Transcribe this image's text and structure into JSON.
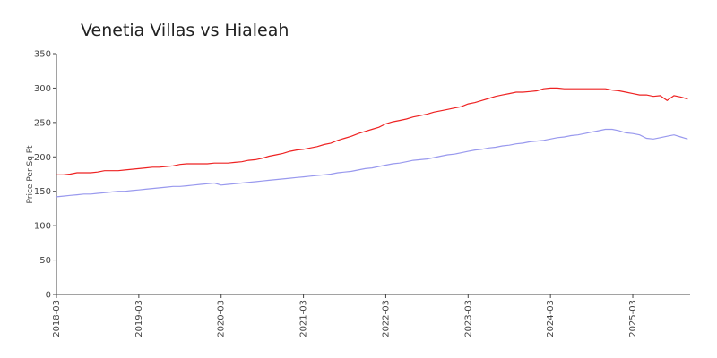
{
  "chart_data": {
    "type": "line",
    "title": "Venetia Villas vs Hialeah",
    "y_label": "Price Per Sq Ft",
    "x": [
      "2018-03",
      "2018-04",
      "2018-05",
      "2018-06",
      "2018-07",
      "2018-08",
      "2018-09",
      "2018-10",
      "2018-11",
      "2018-12",
      "2019-01",
      "2019-02",
      "2019-03",
      "2019-04",
      "2019-05",
      "2019-06",
      "2019-07",
      "2019-08",
      "2019-09",
      "2019-10",
      "2019-11",
      "2019-12",
      "2020-01",
      "2020-02",
      "2020-03",
      "2020-04",
      "2020-05",
      "2020-06",
      "2020-07",
      "2020-08",
      "2020-09",
      "2020-10",
      "2020-11",
      "2020-12",
      "2021-01",
      "2021-02",
      "2021-03",
      "2021-04",
      "2021-05",
      "2021-06",
      "2021-07",
      "2021-08",
      "2021-09",
      "2021-10",
      "2021-11",
      "2021-12",
      "2022-01",
      "2022-02",
      "2022-03",
      "2022-04",
      "2022-05",
      "2022-06",
      "2022-07",
      "2022-08",
      "2022-09",
      "2022-10",
      "2022-11",
      "2022-12",
      "2023-01",
      "2023-02",
      "2023-03",
      "2023-04",
      "2023-05",
      "2023-06",
      "2023-07",
      "2023-08",
      "2023-09",
      "2023-10",
      "2023-11",
      "2023-12",
      "2024-01",
      "2024-02",
      "2024-03",
      "2024-04",
      "2024-05",
      "2024-06",
      "2024-07",
      "2024-08",
      "2024-09",
      "2024-10",
      "2024-11",
      "2024-12",
      "2025-01",
      "2025-02",
      "2025-03",
      "2025-04",
      "2025-05",
      "2025-06",
      "2025-07",
      "2025-08",
      "2025-09",
      "2025-10",
      "2025-11"
    ],
    "series": [
      {
        "color": "#ee2222",
        "values": [
          174,
          174,
          175,
          177,
          177,
          177,
          178,
          180,
          180,
          180,
          181,
          182,
          183,
          184,
          185,
          185,
          186,
          187,
          189,
          190,
          190,
          190,
          190,
          191,
          191,
          191,
          192,
          193,
          195,
          196,
          198,
          201,
          203,
          205,
          208,
          210,
          211,
          213,
          215,
          218,
          220,
          224,
          227,
          230,
          234,
          237,
          240,
          243,
          248,
          251,
          253,
          255,
          258,
          260,
          262,
          265,
          267,
          269,
          271,
          273,
          277,
          279,
          282,
          285,
          288,
          290,
          292,
          294,
          294,
          295,
          296,
          299,
          300,
          300,
          299,
          299,
          299,
          299,
          299,
          299,
          299,
          297,
          296,
          294,
          292,
          290,
          290,
          288,
          289,
          282,
          289,
          287,
          284
        ]
      },
      {
        "color": "#9999ee",
        "values": [
          142,
          143,
          144,
          145,
          146,
          146,
          147,
          148,
          149,
          150,
          150,
          151,
          152,
          153,
          154,
          155,
          156,
          157,
          157,
          158,
          159,
          160,
          161,
          162,
          159,
          160,
          161,
          162,
          163,
          164,
          165,
          166,
          167,
          168,
          169,
          170,
          171,
          172,
          173,
          174,
          175,
          177,
          178,
          179,
          181,
          183,
          184,
          186,
          188,
          190,
          191,
          193,
          195,
          196,
          197,
          199,
          201,
          203,
          204,
          206,
          208,
          210,
          211,
          213,
          214,
          216,
          217,
          219,
          220,
          222,
          223,
          224,
          226,
          228,
          229,
          231,
          232,
          234,
          236,
          238,
          240,
          240,
          238,
          235,
          234,
          232,
          227,
          226,
          228,
          230,
          232,
          229,
          226
        ]
      }
    ],
    "xticks": [
      "2018-03",
      "2019-03",
      "2020-03",
      "2021-03",
      "2022-03",
      "2023-03",
      "2024-03",
      "2025-03"
    ],
    "ylim": [
      0,
      350
    ],
    "yticks": [
      0,
      50,
      100,
      150,
      200,
      250,
      300,
      350
    ]
  }
}
